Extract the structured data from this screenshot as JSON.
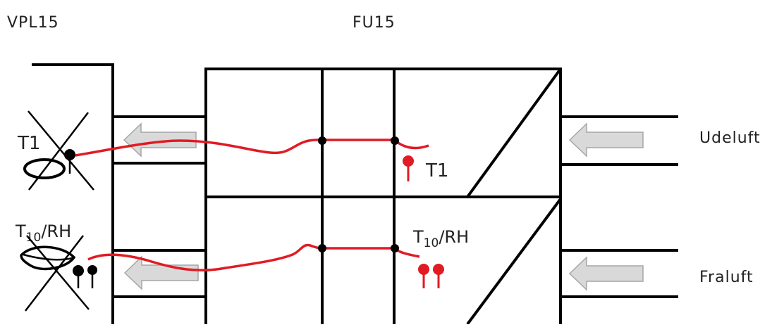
{
  "labels": {
    "left_unit": "VPL15",
    "main_unit": "FU15",
    "outdoor_air": "Udeluft",
    "exhaust_air": "Fraluft"
  },
  "sensors": {
    "left_top": "T1",
    "left_bottom_main": "T",
    "left_bottom_sub": "10",
    "left_bottom_suffix": "/RH",
    "right_top": "T1",
    "right_bottom_main": "T",
    "right_bottom_sub": "10",
    "right_bottom_suffix": "/RH"
  },
  "colors": {
    "line": "#000000",
    "cable": "#e01b24",
    "arrow_fill": "#d9d9d9",
    "arrow_stroke": "#a6a6a6",
    "text": "#222222"
  },
  "icons": {
    "flow_arrow": "left-arrow-icon",
    "temperature_probe": "temperature-probe-icon",
    "humidity_probe": "humidity-probe-icon",
    "removed_sensor": "cross-icon"
  }
}
